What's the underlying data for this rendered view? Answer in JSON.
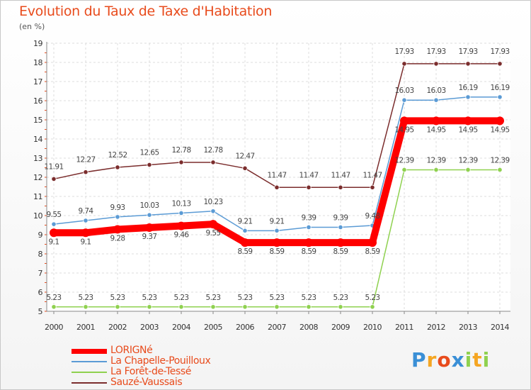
{
  "chart_data": {
    "type": "line",
    "title": "Evolution du Taux de Taxe d'Habitation",
    "unit_label": "(en %)",
    "x": [
      "2000",
      "2001",
      "2002",
      "2003",
      "2004",
      "2005",
      "2006",
      "2007",
      "2008",
      "2009",
      "2010",
      "2011",
      "2012",
      "2013",
      "2014"
    ],
    "y_ticks": [
      "5",
      "6",
      "7",
      "8",
      "9",
      "10",
      "11",
      "12",
      "13",
      "14",
      "15",
      "16",
      "17",
      "18",
      "19"
    ],
    "ylim": [
      5,
      19
    ],
    "grid": true,
    "legend_position": "bottom-left",
    "series": [
      {
        "name": "LORIGNé",
        "color": "#ff0000",
        "values": [
          9.1,
          9.1,
          9.28,
          9.37,
          9.46,
          9.55,
          8.59,
          8.59,
          8.59,
          8.59,
          8.59,
          14.95,
          14.95,
          14.95,
          14.95
        ],
        "labels": [
          "9.1",
          "9.1",
          "9.28",
          "9.37",
          "9.46",
          "9.55",
          "8.59",
          "8.59",
          "8.59",
          "8.59",
          "8.59",
          "14.95",
          "14.95",
          "14.95",
          "14.95"
        ]
      },
      {
        "name": "La Chapelle-Pouilloux",
        "color": "#5b9bd5",
        "values": [
          9.55,
          9.74,
          9.93,
          10.03,
          10.13,
          10.23,
          9.21,
          9.21,
          9.39,
          9.39,
          9.48,
          16.03,
          16.03,
          16.19,
          16.19
        ],
        "labels": [
          "9.55",
          "9.74",
          "9.93",
          "10.03",
          "10.13",
          "10.23",
          "9.21",
          "9.21",
          "9.39",
          "9.39",
          "9.48",
          "16.03",
          "16.03",
          "16.19",
          "16.19"
        ]
      },
      {
        "name": "La Forêt-de-Tessé",
        "color": "#8fd14f",
        "values": [
          5.23,
          5.23,
          5.23,
          5.23,
          5.23,
          5.23,
          5.23,
          5.23,
          5.23,
          5.23,
          5.23,
          12.39,
          12.39,
          12.39,
          12.39
        ],
        "labels": [
          "5.23",
          "5.23",
          "5.23",
          "5.23",
          "5.23",
          "5.23",
          "5.23",
          "5.23",
          "5.23",
          "5.23",
          "5.23",
          "12.39",
          "12.39",
          "12.39",
          "12.39"
        ]
      },
      {
        "name": "Sauzé-Vaussais",
        "color": "#7b2d2d",
        "values": [
          11.91,
          12.27,
          12.52,
          12.65,
          12.78,
          12.78,
          12.47,
          11.47,
          11.47,
          11.47,
          11.47,
          17.93,
          17.93,
          17.93,
          17.93
        ],
        "labels": [
          "11.91",
          "12.27",
          "12.52",
          "12.65",
          "12.78",
          "12.78",
          "12.47",
          "11.47",
          "11.47",
          "11.47",
          "11.47",
          "17.93",
          "17.93",
          "17.93",
          "17.93"
        ]
      }
    ]
  },
  "logo": {
    "letters": [
      "P",
      "r",
      "o",
      "x",
      "i",
      "t",
      "i"
    ],
    "colors": [
      "#3a8fd6",
      "#f5a623",
      "#e84b1c",
      "#3a8fd6",
      "#8fd14f",
      "#f5a623",
      "#8fd14f"
    ]
  }
}
